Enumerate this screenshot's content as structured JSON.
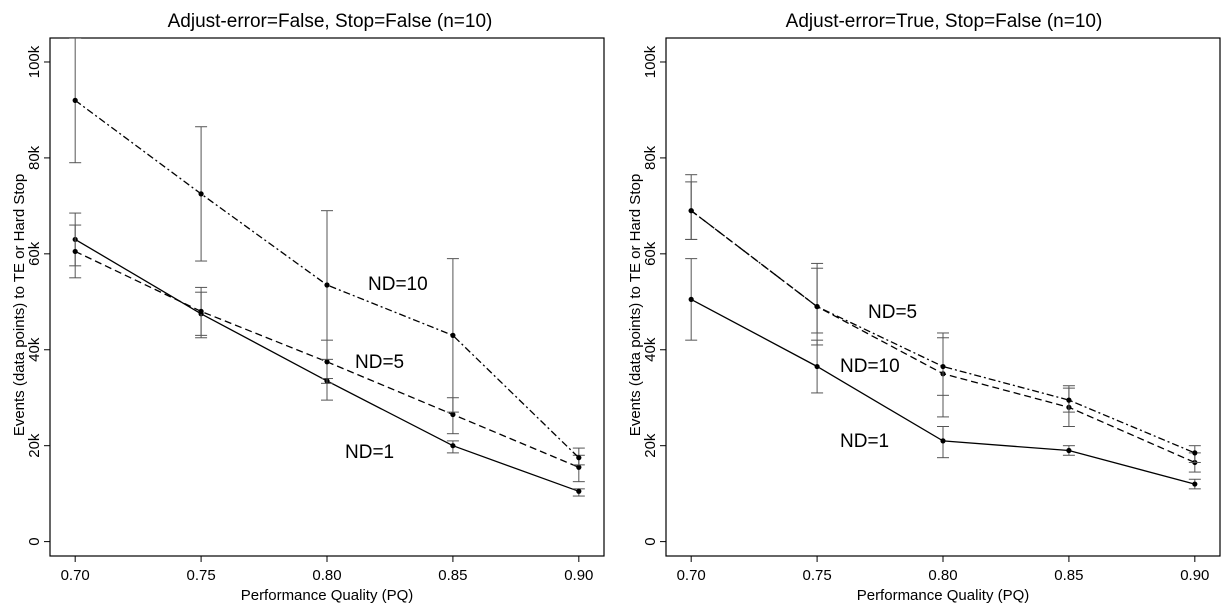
{
  "chart_data": [
    {
      "type": "line",
      "title": "Adjust-error=False, Stop=False (n=10)",
      "xlabel": "Performance Quality (PQ)",
      "ylabel": "Events (data points) to TE or Hard Stop",
      "x": [
        0.7,
        0.75,
        0.8,
        0.85,
        0.9
      ],
      "x_tick_labels": [
        "0.70",
        "0.75",
        "0.80",
        "0.85",
        "0.90"
      ],
      "y_ticks": [
        0,
        20000,
        40000,
        60000,
        80000,
        100000
      ],
      "y_tick_labels": [
        "0",
        "20k",
        "40k",
        "60k",
        "80k",
        "100k"
      ],
      "xlim": [
        0.69,
        0.91
      ],
      "ylim": [
        -3000,
        105000
      ],
      "grid": false,
      "series": [
        {
          "name": "ND=1",
          "style": "solid",
          "values": [
            63000,
            47500,
            33500,
            20000,
            10500
          ],
          "err_low": [
            57500,
            42500,
            33000,
            18500,
            9500
          ],
          "err_high": [
            68500,
            52000,
            34000,
            21000,
            11000
          ]
        },
        {
          "name": "ND=5",
          "style": "dashed",
          "values": [
            60500,
            48000,
            37500,
            26500,
            15500
          ],
          "err_low": [
            55000,
            43000,
            29500,
            22500,
            12500
          ],
          "err_high": [
            66000,
            53000,
            42000,
            30000,
            18000
          ]
        },
        {
          "name": "ND=10",
          "style": "dashdot",
          "values": [
            92000,
            72500,
            53500,
            43000,
            17500
          ],
          "err_low": [
            79000,
            58500,
            38000,
            27000,
            16000
          ],
          "err_high": [
            105000,
            86500,
            69000,
            59000,
            19500
          ]
        }
      ]
    },
    {
      "type": "line",
      "title": "Adjust-error=True, Stop=False (n=10)",
      "xlabel": "Performance Quality (PQ)",
      "ylabel": "Events (data points) to TE or Hard Stop",
      "x": [
        0.7,
        0.75,
        0.8,
        0.85,
        0.9
      ],
      "x_tick_labels": [
        "0.70",
        "0.75",
        "0.80",
        "0.85",
        "0.90"
      ],
      "y_ticks": [
        0,
        20000,
        40000,
        60000,
        80000,
        100000
      ],
      "y_tick_labels": [
        "0",
        "20k",
        "40k",
        "60k",
        "80k",
        "100k"
      ],
      "xlim": [
        0.69,
        0.91
      ],
      "ylim": [
        -3000,
        105000
      ],
      "grid": false,
      "series": [
        {
          "name": "ND=1",
          "style": "solid",
          "values": [
            50500,
            36500,
            21000,
            19000,
            12000
          ],
          "err_low": [
            42000,
            31000,
            17500,
            18000,
            11000
          ],
          "err_high": [
            59000,
            42000,
            24000,
            20000,
            13000
          ]
        },
        {
          "name": "ND=5",
          "style": "dashed",
          "values": [
            69000,
            49000,
            35000,
            28000,
            16500
          ],
          "err_low": [
            63000,
            41000,
            26000,
            24000,
            14500
          ],
          "err_high": [
            75000,
            57000,
            43500,
            32000,
            18500
          ]
        },
        {
          "name": "ND=10",
          "style": "dashdot",
          "values": [
            69000,
            49000,
            36500,
            29500,
            18500
          ],
          "err_low": [
            63000,
            43500,
            30500,
            27000,
            16500
          ],
          "err_high": [
            76500,
            58000,
            42500,
            32500,
            20000
          ]
        }
      ]
    }
  ]
}
